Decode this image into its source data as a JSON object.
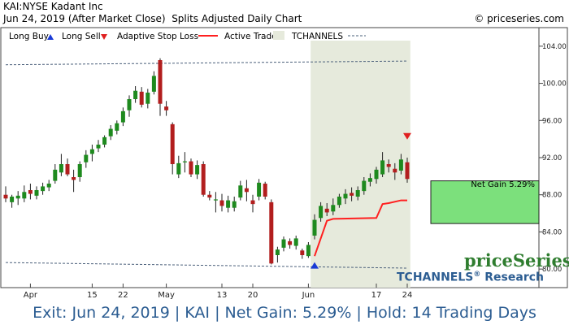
{
  "header": {
    "line1": "KAI:NYSE Kadant Inc",
    "line2": "Jun 24, 2019 (After Market Close)  Splits Adjusted Daily Chart",
    "copyright": "© priceseries.com"
  },
  "legend": {
    "long_buy": "Long Buy",
    "long_sell": "Long Sell",
    "adaptive_stop": "Adaptive Stop Loss",
    "active_trade": "Active Trade",
    "tchannels": "TCHANNELS"
  },
  "net_gain_label": "Net Gain 5.29%",
  "brand": {
    "name": "priceSeries",
    "sub": "TCHANNELS",
    "reg": "®",
    "sub2": " Research"
  },
  "footer": "Exit: Jun 24, 2019 | KAI | Net Gain: 5.29% | Hold: 14 Trading Days",
  "colors": {
    "up": "#1e8a1e",
    "down": "#b21e1e",
    "stop": "#ff2020",
    "active_band": "#e6eadc",
    "gain_box": "#7ce07c",
    "channel": "#4a5f7a",
    "buy_arrow": "#1a3bd6",
    "sell_arrow": "#e02020"
  },
  "chart_data": {
    "type": "candlestick",
    "ylim": [
      78.0,
      106.0
    ],
    "y_ticks": [
      80.0,
      84.0,
      88.0,
      92.0,
      96.0,
      100.0,
      104.0
    ],
    "x_tick_labels": [
      {
        "label": "Apr",
        "index": 4
      },
      {
        "label": "15",
        "index": 14
      },
      {
        "label": "22",
        "index": 19
      },
      {
        "label": "May",
        "index": 26
      },
      {
        "label": "13",
        "index": 35
      },
      {
        "label": "20",
        "index": 40
      },
      {
        "label": "Jun",
        "index": 49
      },
      {
        "label": "17",
        "index": 60
      },
      {
        "label": "24",
        "index": 65
      }
    ],
    "candles": [
      {
        "o": 88.0,
        "h": 88.9,
        "l": 87.2,
        "c": 87.6
      },
      {
        "o": 87.2,
        "h": 88.0,
        "l": 86.6,
        "c": 87.8
      },
      {
        "o": 87.6,
        "h": 88.4,
        "l": 86.9,
        "c": 87.9
      },
      {
        "o": 87.6,
        "h": 89.0,
        "l": 87.2,
        "c": 88.3
      },
      {
        "o": 88.5,
        "h": 89.2,
        "l": 87.5,
        "c": 88.1
      },
      {
        "o": 87.9,
        "h": 88.9,
        "l": 87.5,
        "c": 88.5
      },
      {
        "o": 88.4,
        "h": 89.3,
        "l": 88.0,
        "c": 88.9
      },
      {
        "o": 88.8,
        "h": 89.6,
        "l": 88.4,
        "c": 89.2
      },
      {
        "o": 89.5,
        "h": 91.3,
        "l": 89.2,
        "c": 90.7
      },
      {
        "o": 90.4,
        "h": 92.4,
        "l": 90.0,
        "c": 91.3
      },
      {
        "o": 91.3,
        "h": 91.9,
        "l": 90.0,
        "c": 90.2
      },
      {
        "o": 89.9,
        "h": 90.7,
        "l": 88.3,
        "c": 89.6
      },
      {
        "o": 89.9,
        "h": 91.6,
        "l": 89.4,
        "c": 91.3
      },
      {
        "o": 91.5,
        "h": 92.8,
        "l": 90.9,
        "c": 92.3
      },
      {
        "o": 92.4,
        "h": 93.4,
        "l": 91.6,
        "c": 92.9
      },
      {
        "o": 93.0,
        "h": 93.9,
        "l": 92.6,
        "c": 93.4
      },
      {
        "o": 93.4,
        "h": 94.4,
        "l": 93.1,
        "c": 94.2
      },
      {
        "o": 94.3,
        "h": 95.5,
        "l": 93.9,
        "c": 95.1
      },
      {
        "o": 94.9,
        "h": 96.0,
        "l": 94.5,
        "c": 95.7
      },
      {
        "o": 95.8,
        "h": 97.4,
        "l": 95.4,
        "c": 97.0
      },
      {
        "o": 97.1,
        "h": 98.7,
        "l": 96.4,
        "c": 98.3
      },
      {
        "o": 98.3,
        "h": 99.7,
        "l": 97.9,
        "c": 99.2
      },
      {
        "o": 99.1,
        "h": 99.6,
        "l": 97.4,
        "c": 97.7
      },
      {
        "o": 97.8,
        "h": 99.4,
        "l": 97.3,
        "c": 99.0
      },
      {
        "o": 99.1,
        "h": 101.3,
        "l": 98.8,
        "c": 100.8
      },
      {
        "o": 102.5,
        "h": 102.7,
        "l": 96.5,
        "c": 97.8
      },
      {
        "o": 97.5,
        "h": 98.1,
        "l": 96.5,
        "c": 97.1
      },
      {
        "o": 95.6,
        "h": 95.8,
        "l": 90.2,
        "c": 91.3
      },
      {
        "o": 90.2,
        "h": 92.2,
        "l": 89.8,
        "c": 91.4
      },
      {
        "o": 91.6,
        "h": 92.6,
        "l": 90.4,
        "c": 91.6
      },
      {
        "o": 91.6,
        "h": 91.9,
        "l": 89.9,
        "c": 90.2
      },
      {
        "o": 90.2,
        "h": 91.7,
        "l": 89.7,
        "c": 91.2
      },
      {
        "o": 91.3,
        "h": 91.6,
        "l": 87.8,
        "c": 88.0
      },
      {
        "o": 88.0,
        "h": 88.4,
        "l": 87.4,
        "c": 87.7
      },
      {
        "o": 87.5,
        "h": 88.3,
        "l": 86.1,
        "c": 87.5
      },
      {
        "o": 87.4,
        "h": 88.1,
        "l": 86.2,
        "c": 86.8
      },
      {
        "o": 86.6,
        "h": 87.9,
        "l": 86.1,
        "c": 87.4
      },
      {
        "o": 86.6,
        "h": 87.8,
        "l": 86.2,
        "c": 87.3
      },
      {
        "o": 87.7,
        "h": 89.5,
        "l": 87.4,
        "c": 89.0
      },
      {
        "o": 88.7,
        "h": 89.6,
        "l": 87.3,
        "c": 88.3
      },
      {
        "o": 87.4,
        "h": 88.0,
        "l": 86.1,
        "c": 87.0
      },
      {
        "o": 87.8,
        "h": 89.7,
        "l": 87.4,
        "c": 89.3
      },
      {
        "o": 89.2,
        "h": 89.4,
        "l": 87.5,
        "c": 87.8
      },
      {
        "o": 87.2,
        "h": 87.5,
        "l": 80.5,
        "c": 80.6
      },
      {
        "o": 81.5,
        "h": 82.4,
        "l": 80.7,
        "c": 82.1
      },
      {
        "o": 82.3,
        "h": 83.5,
        "l": 81.9,
        "c": 83.2
      },
      {
        "o": 83.0,
        "h": 83.3,
        "l": 82.2,
        "c": 82.6
      },
      {
        "o": 82.5,
        "h": 83.6,
        "l": 82.1,
        "c": 83.3
      },
      {
        "o": 82.0,
        "h": 82.2,
        "l": 81.1,
        "c": 81.5
      },
      {
        "o": 81.4,
        "h": 82.9,
        "l": 81.2,
        "c": 82.6
      },
      {
        "o": 83.6,
        "h": 85.9,
        "l": 83.2,
        "c": 85.3
      },
      {
        "o": 85.5,
        "h": 87.2,
        "l": 85.1,
        "c": 86.8
      },
      {
        "o": 86.5,
        "h": 87.1,
        "l": 85.7,
        "c": 86.1
      },
      {
        "o": 86.2,
        "h": 87.6,
        "l": 85.8,
        "c": 86.9
      },
      {
        "o": 86.9,
        "h": 88.1,
        "l": 86.6,
        "c": 87.8
      },
      {
        "o": 87.6,
        "h": 88.6,
        "l": 87.0,
        "c": 88.1
      },
      {
        "o": 88.2,
        "h": 88.8,
        "l": 87.3,
        "c": 87.9
      },
      {
        "o": 87.8,
        "h": 88.9,
        "l": 87.4,
        "c": 88.5
      },
      {
        "o": 88.4,
        "h": 89.9,
        "l": 88.0,
        "c": 89.5
      },
      {
        "o": 89.4,
        "h": 90.3,
        "l": 88.9,
        "c": 89.8
      },
      {
        "o": 89.7,
        "h": 91.0,
        "l": 89.2,
        "c": 90.7
      },
      {
        "o": 90.2,
        "h": 92.6,
        "l": 89.9,
        "c": 91.7
      },
      {
        "o": 91.3,
        "h": 91.8,
        "l": 90.4,
        "c": 91.0
      },
      {
        "o": 90.8,
        "h": 91.4,
        "l": 89.6,
        "c": 90.4
      },
      {
        "o": 90.6,
        "h": 92.4,
        "l": 90.2,
        "c": 91.8
      },
      {
        "o": 91.5,
        "h": 92.0,
        "l": 89.3,
        "c": 89.7
      }
    ],
    "channel_upper": {
      "start_index": 0,
      "start_value": 102.0,
      "end_index": 65,
      "end_value": 102.4
    },
    "channel_lower": {
      "start_index": 0,
      "start_value": 80.7,
      "end_index": 65,
      "end_value": 80.1
    },
    "active_trade": {
      "start_index": 50,
      "end_index": 65
    },
    "stop_loss": [
      {
        "index": 50,
        "value": 81.4
      },
      {
        "index": 52,
        "value": 85.2
      },
      {
        "index": 53,
        "value": 85.4
      },
      {
        "index": 60,
        "value": 85.5
      },
      {
        "index": 61,
        "value": 87.0
      },
      {
        "index": 62,
        "value": 87.1
      },
      {
        "index": 64,
        "value": 87.4
      },
      {
        "index": 65,
        "value": 87.4
      }
    ],
    "buy_signal": {
      "index": 50,
      "value": 80.4
    },
    "sell_signal": {
      "index": 65,
      "value": 94.3
    },
    "net_gain_box": {
      "low": 84.9,
      "high": 89.5
    }
  }
}
